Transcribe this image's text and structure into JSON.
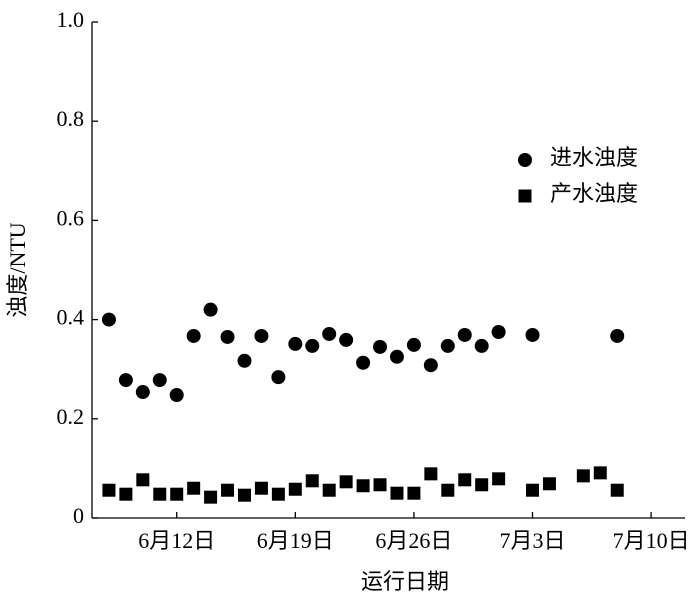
{
  "chart_data": {
    "type": "scatter",
    "x_label": "运行日期",
    "y_label": "浊度/NTU",
    "xlim": [
      "06-07",
      "07-12"
    ],
    "xticks": [
      {
        "value": "06-12",
        "label": "6月12日"
      },
      {
        "value": "06-19",
        "label": "6月19日"
      },
      {
        "value": "06-26",
        "label": "6月26日"
      },
      {
        "value": "07-03",
        "label": "7月3日"
      },
      {
        "value": "07-10",
        "label": "7月10日"
      }
    ],
    "ylim": [
      0,
      1
    ],
    "yticks": [
      0,
      0.2,
      0.4,
      0.6,
      0.8,
      {
        "value": 1,
        "label": "1.0"
      }
    ],
    "legend": "upper right",
    "series": [
      {
        "name": "进水浊度",
        "color": "#000000",
        "marker": "circle",
        "x": [
          "06-08",
          "06-09",
          "06-10",
          "06-11",
          "06-12",
          "06-13",
          "06-14",
          "06-15",
          "06-16",
          "06-17",
          "06-18",
          "06-19",
          "06-20",
          "06-21",
          "06-22",
          "06-23",
          "06-24",
          "06-25",
          "06-26",
          "06-27",
          "06-28",
          "06-29",
          "06-30",
          "07-01",
          "07-03",
          "07-08"
        ],
        "values": [
          0.4,
          0.278,
          0.254,
          0.278,
          0.248,
          0.367,
          0.42,
          0.365,
          0.317,
          0.367,
          0.284,
          0.351,
          0.347,
          0.371,
          0.359,
          0.313,
          0.345,
          0.325,
          0.349,
          0.308,
          0.347,
          0.369,
          0.347,
          0.375,
          0.369,
          0.367
        ]
      },
      {
        "name": "产水浊度",
        "color": "#000000",
        "marker": "square",
        "x": [
          "06-08",
          "06-09",
          "06-10",
          "06-11",
          "06-12",
          "06-13",
          "06-14",
          "06-15",
          "06-16",
          "06-17",
          "06-18",
          "06-19",
          "06-20",
          "06-21",
          "06-22",
          "06-23",
          "06-24",
          "06-25",
          "06-26",
          "06-27",
          "06-28",
          "06-29",
          "06-30",
          "07-01",
          "07-03",
          "07-04",
          "07-06",
          "07-07",
          "07-08"
        ],
        "values": [
          0.056,
          0.048,
          0.077,
          0.048,
          0.048,
          0.06,
          0.042,
          0.056,
          0.046,
          0.06,
          0.048,
          0.058,
          0.075,
          0.056,
          0.073,
          0.065,
          0.067,
          0.05,
          0.05,
          0.089,
          0.056,
          0.077,
          0.067,
          0.079,
          0.056,
          0.069,
          0.085,
          0.091,
          0.056
        ]
      }
    ]
  }
}
